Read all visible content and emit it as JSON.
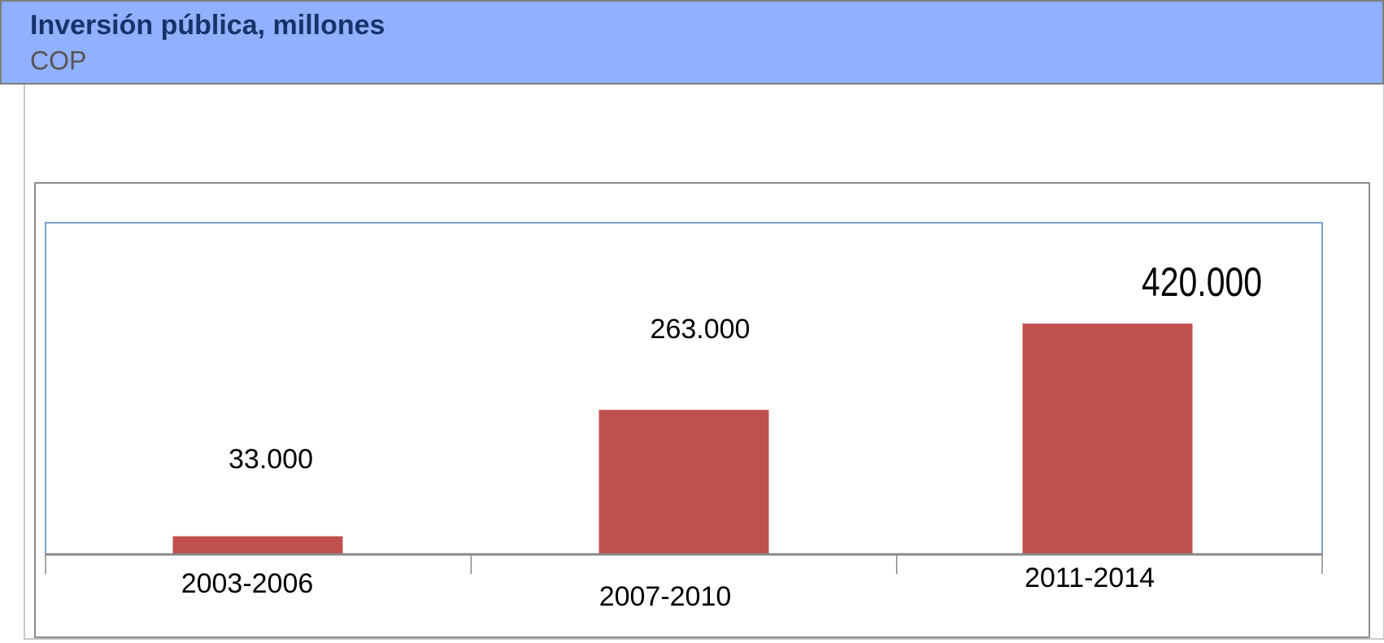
{
  "chart_data": {
    "type": "bar",
    "title": "Inversión pública, millones",
    "subtitle": "COP",
    "categories": [
      "2003-2006",
      "2007-2010",
      "2011-2014"
    ],
    "values": [
      33000,
      263000,
      420000
    ],
    "value_labels": [
      "33.000",
      "263.000",
      "420.000"
    ],
    "color": "#c0504d"
  }
}
